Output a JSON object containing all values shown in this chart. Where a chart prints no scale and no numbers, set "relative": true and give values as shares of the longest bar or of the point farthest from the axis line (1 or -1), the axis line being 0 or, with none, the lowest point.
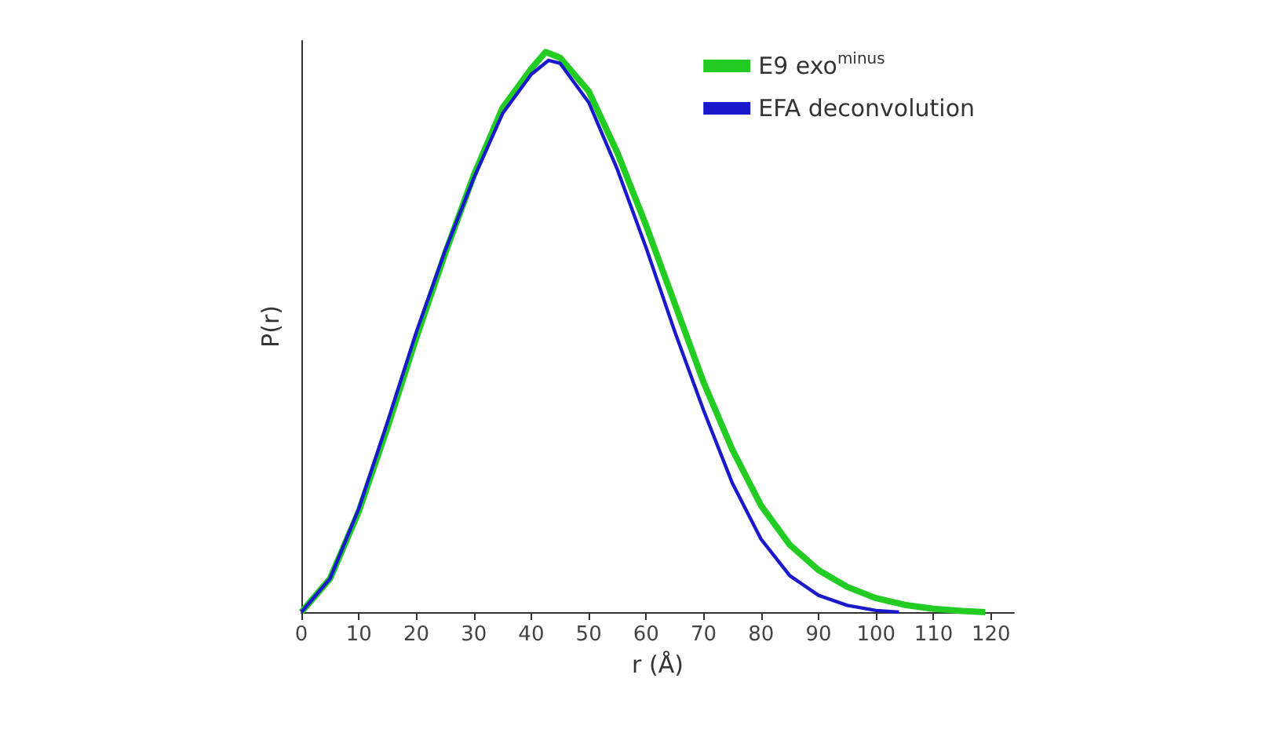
{
  "chart_data": {
    "type": "line",
    "xlabel": "r (Å)",
    "ylabel": "P(r)",
    "relative": true,
    "legend": "top right",
    "grid": false,
    "marker": "none",
    "line_style": "solid",
    "xlim": [
      0,
      124
    ],
    "xticks": [
      0,
      10,
      20,
      30,
      40,
      50,
      60,
      70,
      80,
      90,
      100,
      110,
      120
    ],
    "series": [
      {
        "name": "E9 exo$^{minus}$",
        "color": "#22cc22",
        "x": [
          0,
          5,
          10,
          15,
          20,
          25,
          30,
          35,
          40,
          42.5,
          45,
          50,
          55,
          60,
          65,
          70,
          75,
          80,
          85,
          90,
          95,
          100,
          105,
          110,
          115,
          119
        ],
        "values": [
          0,
          0.06,
          0.18,
          0.33,
          0.49,
          0.64,
          0.78,
          0.9,
          0.97,
          1,
          0.99,
          0.93,
          0.82,
          0.69,
          0.55,
          0.41,
          0.29,
          0.19,
          0.12,
          0.075,
          0.045,
          0.025,
          0.013,
          0.006,
          0.002,
          0
        ]
      },
      {
        "name": "EFA deconvolution",
        "color": "#1a1acc",
        "x": [
          0,
          5,
          10,
          15,
          20,
          25,
          30,
          35,
          40,
          43,
          45,
          50,
          55,
          60,
          65,
          70,
          75,
          80,
          85,
          90,
          95,
          100,
          104
        ],
        "values": [
          0,
          0.06,
          0.185,
          0.34,
          0.5,
          0.645,
          0.775,
          0.89,
          0.96,
          0.985,
          0.98,
          0.91,
          0.79,
          0.65,
          0.5,
          0.36,
          0.23,
          0.13,
          0.065,
          0.03,
          0.012,
          0.003,
          0
        ]
      }
    ]
  }
}
